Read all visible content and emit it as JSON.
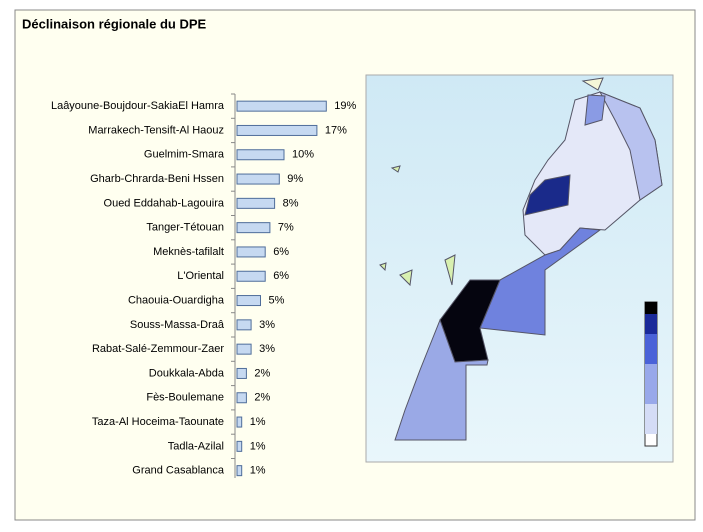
{
  "chart_data": {
    "type": "bar",
    "orientation": "horizontal",
    "title": "Déclinaison régionale du DPE",
    "categories": [
      "Laâyoune-Boujdour-SakiaEl Hamra",
      "Marrakech-Tensift-Al Haouz",
      "Guelmim-Smara",
      "Gharb-Chrarda-Beni Hssen",
      "Oued Eddahab-Lagouira",
      "Tanger-Tétouan",
      "Meknès-tafilalt",
      "L'Oriental",
      "Chaouia-Ouardigha",
      "Souss-Massa-Draâ",
      "Rabat-Salé-Zemmour-Zaer",
      "Doukkala-Abda",
      "Fès-Boulemane",
      "Taza-Al Hoceima-Taounate",
      "Tadla-Azilal",
      "Grand Casablanca"
    ],
    "values": [
      19,
      17,
      10,
      9,
      8,
      7,
      6,
      6,
      5,
      3,
      3,
      2,
      2,
      1,
      1,
      1
    ],
    "value_labels": [
      "19%",
      "17%",
      "10%",
      "9%",
      "8%",
      "7%",
      "6%",
      "6%",
      "5%",
      "3%",
      "3%",
      "2%",
      "2%",
      "1%",
      "1%",
      "1%"
    ],
    "color": "#c6d9f1"
  }
}
